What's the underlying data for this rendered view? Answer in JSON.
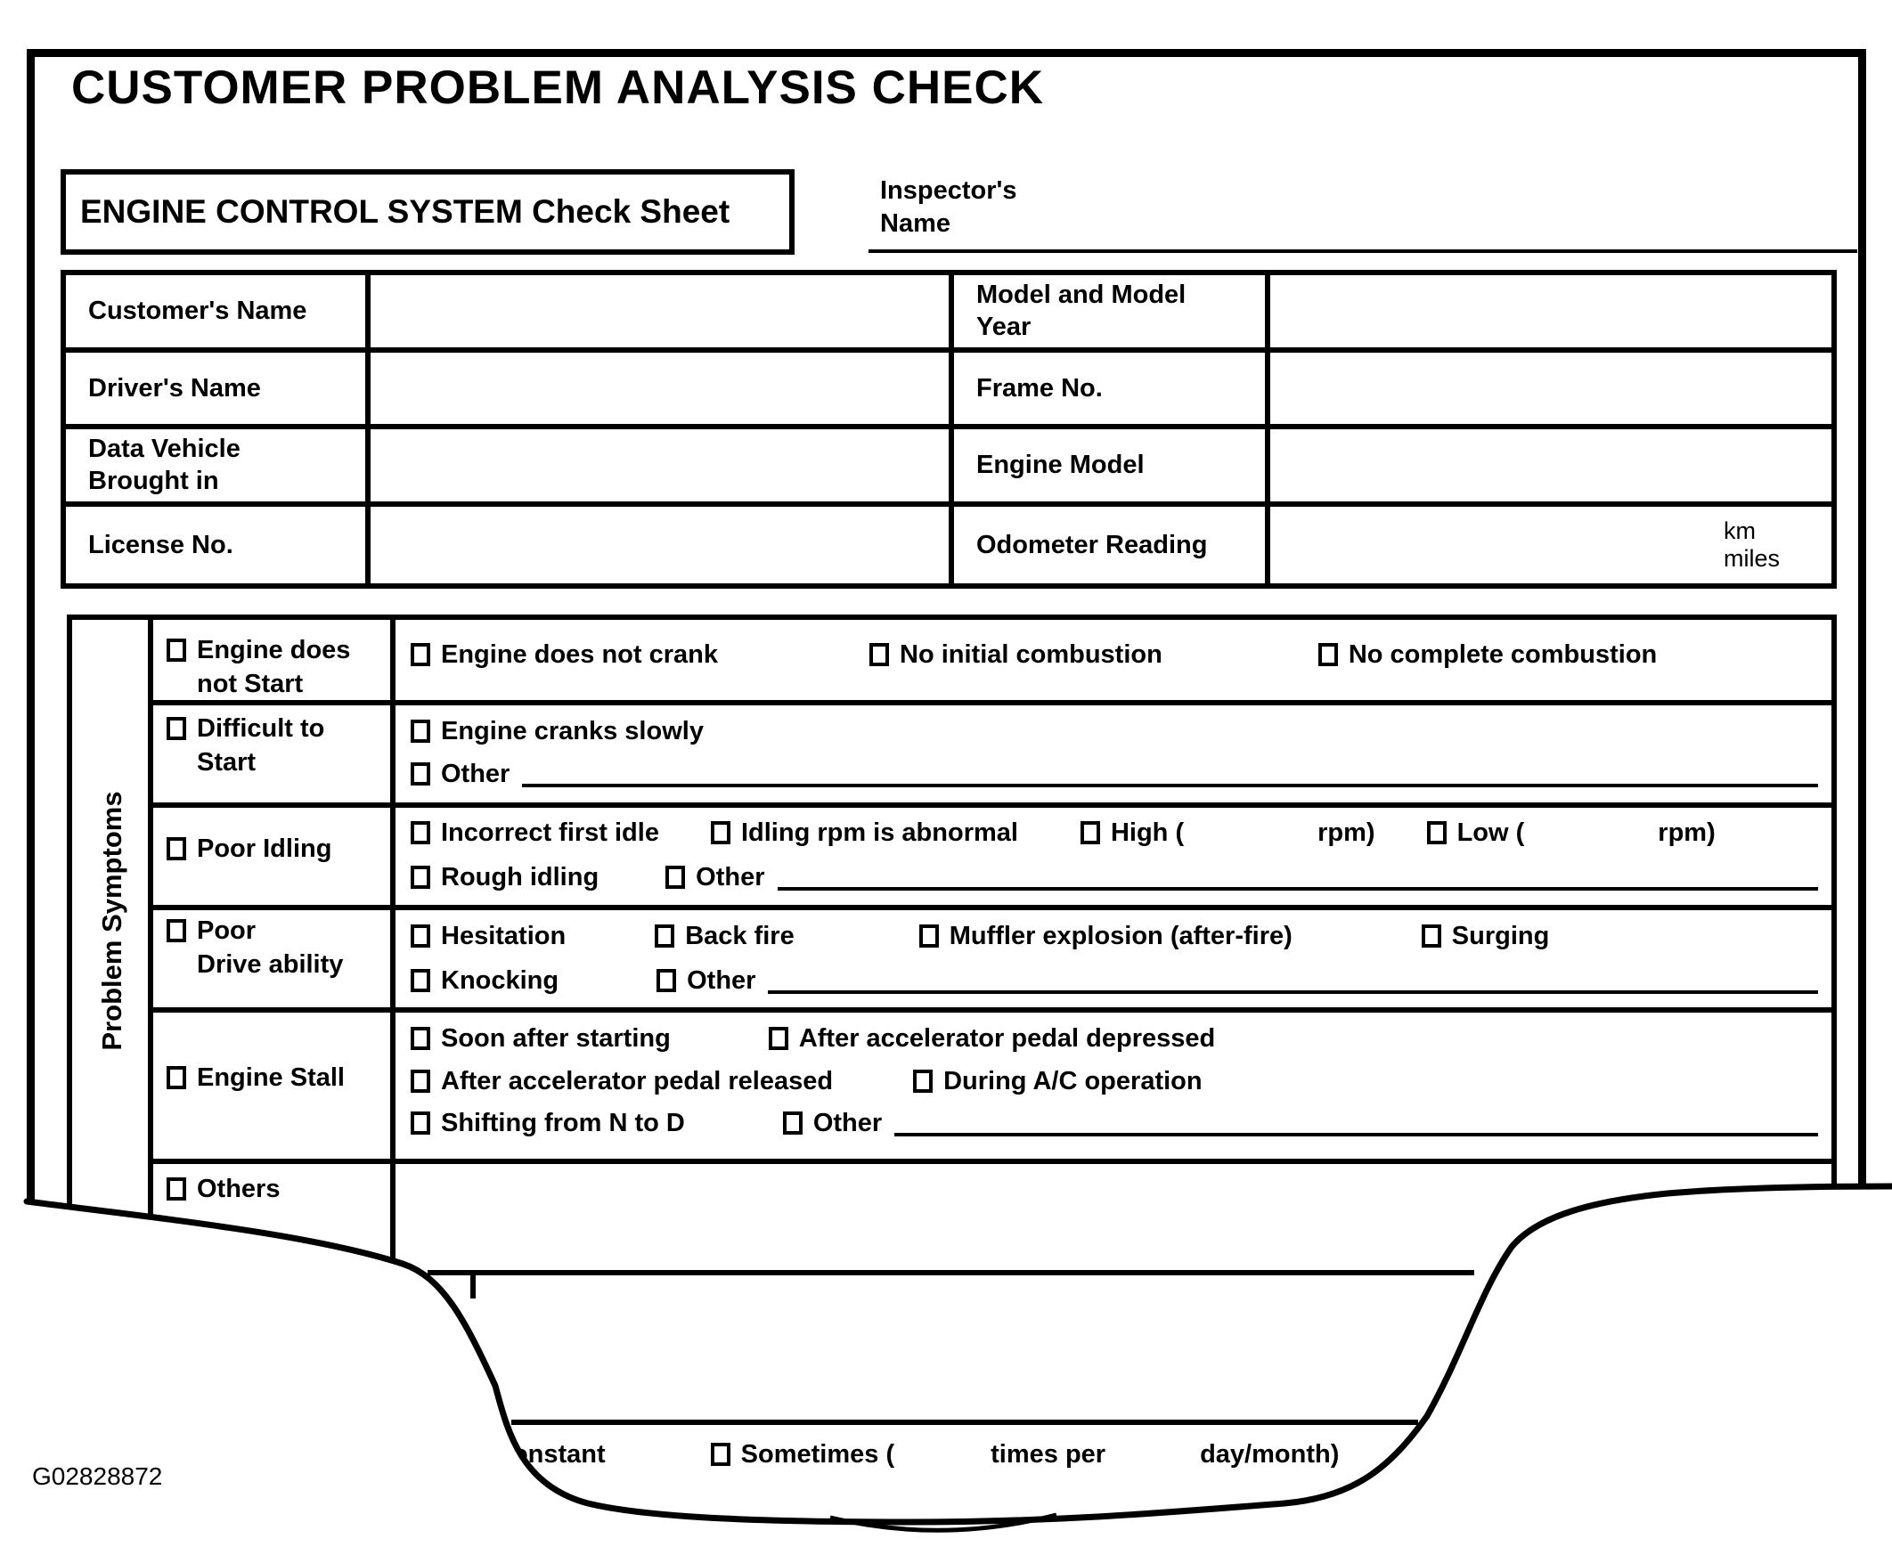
{
  "title": "CUSTOMER PROBLEM ANALYSIS CHECK",
  "subtitle": "ENGINE CONTROL SYSTEM Check Sheet",
  "inspector": {
    "line1": "Inspector's",
    "line2": "Name"
  },
  "info_table": {
    "rows": [
      {
        "left": [
          "Customer's Name"
        ],
        "left_value": "",
        "right": [
          "Model and Model",
          "Year"
        ],
        "right_value": ""
      },
      {
        "left": [
          "Driver's Name"
        ],
        "left_value": "",
        "right": [
          "Frame No."
        ],
        "right_value": ""
      },
      {
        "left": [
          "Data Vehicle",
          "Brought in"
        ],
        "left_value": "",
        "right": [
          "Engine Model"
        ],
        "right_value": ""
      },
      {
        "left": [
          "License No."
        ],
        "left_value": "",
        "right": [
          "Odometer Reading"
        ],
        "right_value": "",
        "units": [
          "km",
          "miles"
        ]
      }
    ]
  },
  "symptoms": {
    "section_label": "Problem Symptoms",
    "rows": [
      {
        "label": [
          "Engine does",
          "not Start"
        ],
        "lines": [
          [
            {
              "cb": "Engine does not crank"
            },
            {
              "cb": "No initial combustion",
              "ml": 170
            },
            {
              "cb": "No complete combustion",
              "ml": 175
            }
          ]
        ]
      },
      {
        "label": [
          "Difficult to",
          "Start"
        ],
        "lines": [
          [
            {
              "cb": "Engine cranks slowly"
            }
          ],
          [
            {
              "cb": "Other",
              "line": true
            }
          ]
        ]
      },
      {
        "label": [
          "Poor Idling"
        ],
        "lines": [
          [
            {
              "cb": "Incorrect first idle"
            },
            {
              "cb": "Idling rpm is abnormal",
              "ml": 58
            },
            {
              "cb": "High (",
              "gap": 150,
              "x2": "rpm)",
              "ml": 70
            },
            {
              "cb": "Low (",
              "gap": 150,
              "x2": "rpm)",
              "ml": 58
            }
          ],
          [
            {
              "cb": "Rough idling"
            },
            {
              "cb": "Other",
              "ml": 75,
              "line": true
            }
          ]
        ]
      },
      {
        "label": [
          "Poor",
          "Drive ability"
        ],
        "lines": [
          [
            {
              "cb": "Hesitation"
            },
            {
              "cb": "Back fire",
              "ml": 100
            },
            {
              "cb": "Muffler explosion (after-fire)",
              "ml": 140
            },
            {
              "cb": "Surging",
              "ml": 145
            }
          ],
          [
            {
              "cb": "Knocking"
            },
            {
              "cb": "Other",
              "ml": 110,
              "line": true
            }
          ]
        ]
      },
      {
        "label": [
          "Engine Stall"
        ],
        "lines": [
          [
            {
              "cb": "Soon after starting"
            },
            {
              "cb": "After accelerator pedal depressed",
              "ml": 110
            }
          ],
          [
            {
              "cb": "After accelerator pedal released"
            },
            {
              "cb": "During A/C operation",
              "ml": 90
            }
          ],
          [
            {
              "cb": "Shifting from N to D"
            },
            {
              "cb": "Other",
              "ml": 110,
              "line": true
            }
          ]
        ]
      },
      {
        "label": [
          "Others"
        ],
        "lines": []
      }
    ]
  },
  "torn_row": {
    "items": [
      {
        "cb": "Constant"
      },
      {
        "cb": "Sometimes (",
        "ml": 118
      },
      {
        "t": "times per",
        "ml": 108
      },
      {
        "t": "day/month)",
        "ml": 106
      }
    ]
  },
  "figure_id": "G02828872",
  "colors": {
    "ink": "#000000",
    "paper": "#ffffff"
  }
}
